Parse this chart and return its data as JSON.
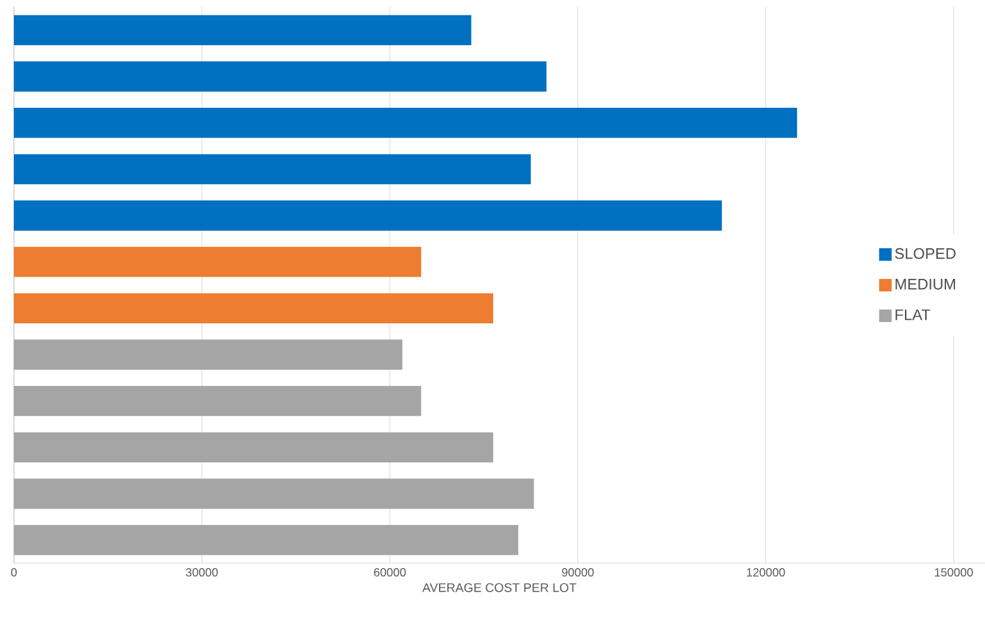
{
  "chart_data": {
    "type": "bar",
    "orientation": "horizontal",
    "xlabel": "AVERAGE COST PER LOT",
    "categories": [
      null,
      null,
      null,
      null,
      null,
      null,
      null,
      null,
      null,
      null,
      null,
      null
    ],
    "series": [
      {
        "name": "SLOPED",
        "color": "#0070c0",
        "values": [
          73000,
          85000,
          125000,
          82500,
          113000,
          null,
          null,
          null,
          null,
          null,
          null,
          null
        ]
      },
      {
        "name": "MEDIUM",
        "color": "#ed7d31",
        "values": [
          null,
          null,
          null,
          null,
          null,
          65000,
          76500,
          null,
          null,
          null,
          null,
          null
        ]
      },
      {
        "name": "FLAT",
        "color": "#a5a5a5",
        "values": [
          null,
          null,
          null,
          null,
          null,
          null,
          null,
          62000,
          65000,
          76500,
          83000,
          80500
        ]
      }
    ],
    "xlim": [
      0,
      155000
    ],
    "xticks": [
      0,
      30000,
      60000,
      90000,
      120000,
      150000
    ],
    "grid": "x",
    "legend": "right",
    "tick_labels": "x"
  }
}
